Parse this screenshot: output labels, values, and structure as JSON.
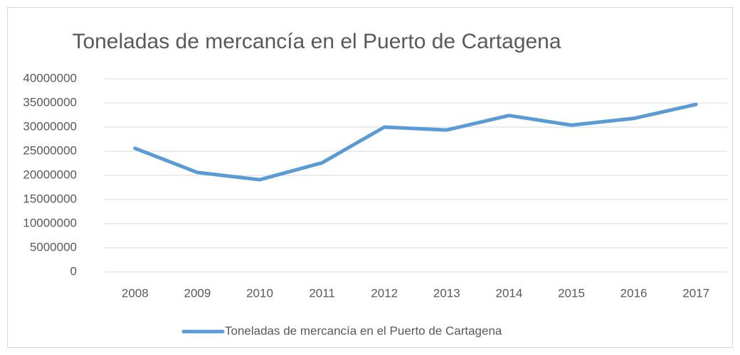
{
  "chart_data": {
    "type": "line",
    "title": "Toneladas de mercancía en el Puerto de Cartagena",
    "categories": [
      "2008",
      "2009",
      "2010",
      "2011",
      "2012",
      "2013",
      "2014",
      "2015",
      "2016",
      "2017"
    ],
    "series": [
      {
        "name": "Toneladas de mercancía en el Puerto de Cartagena",
        "color": "#5b9bd5",
        "values": [
          25600000,
          20600000,
          19100000,
          22600000,
          30000000,
          29400000,
          32400000,
          30400000,
          31800000,
          34700000
        ]
      }
    ],
    "ylim": [
      0,
      40000000
    ],
    "yticks": [
      0,
      5000000,
      10000000,
      15000000,
      20000000,
      25000000,
      30000000,
      35000000,
      40000000
    ],
    "grid": true,
    "legend": "bottom"
  }
}
